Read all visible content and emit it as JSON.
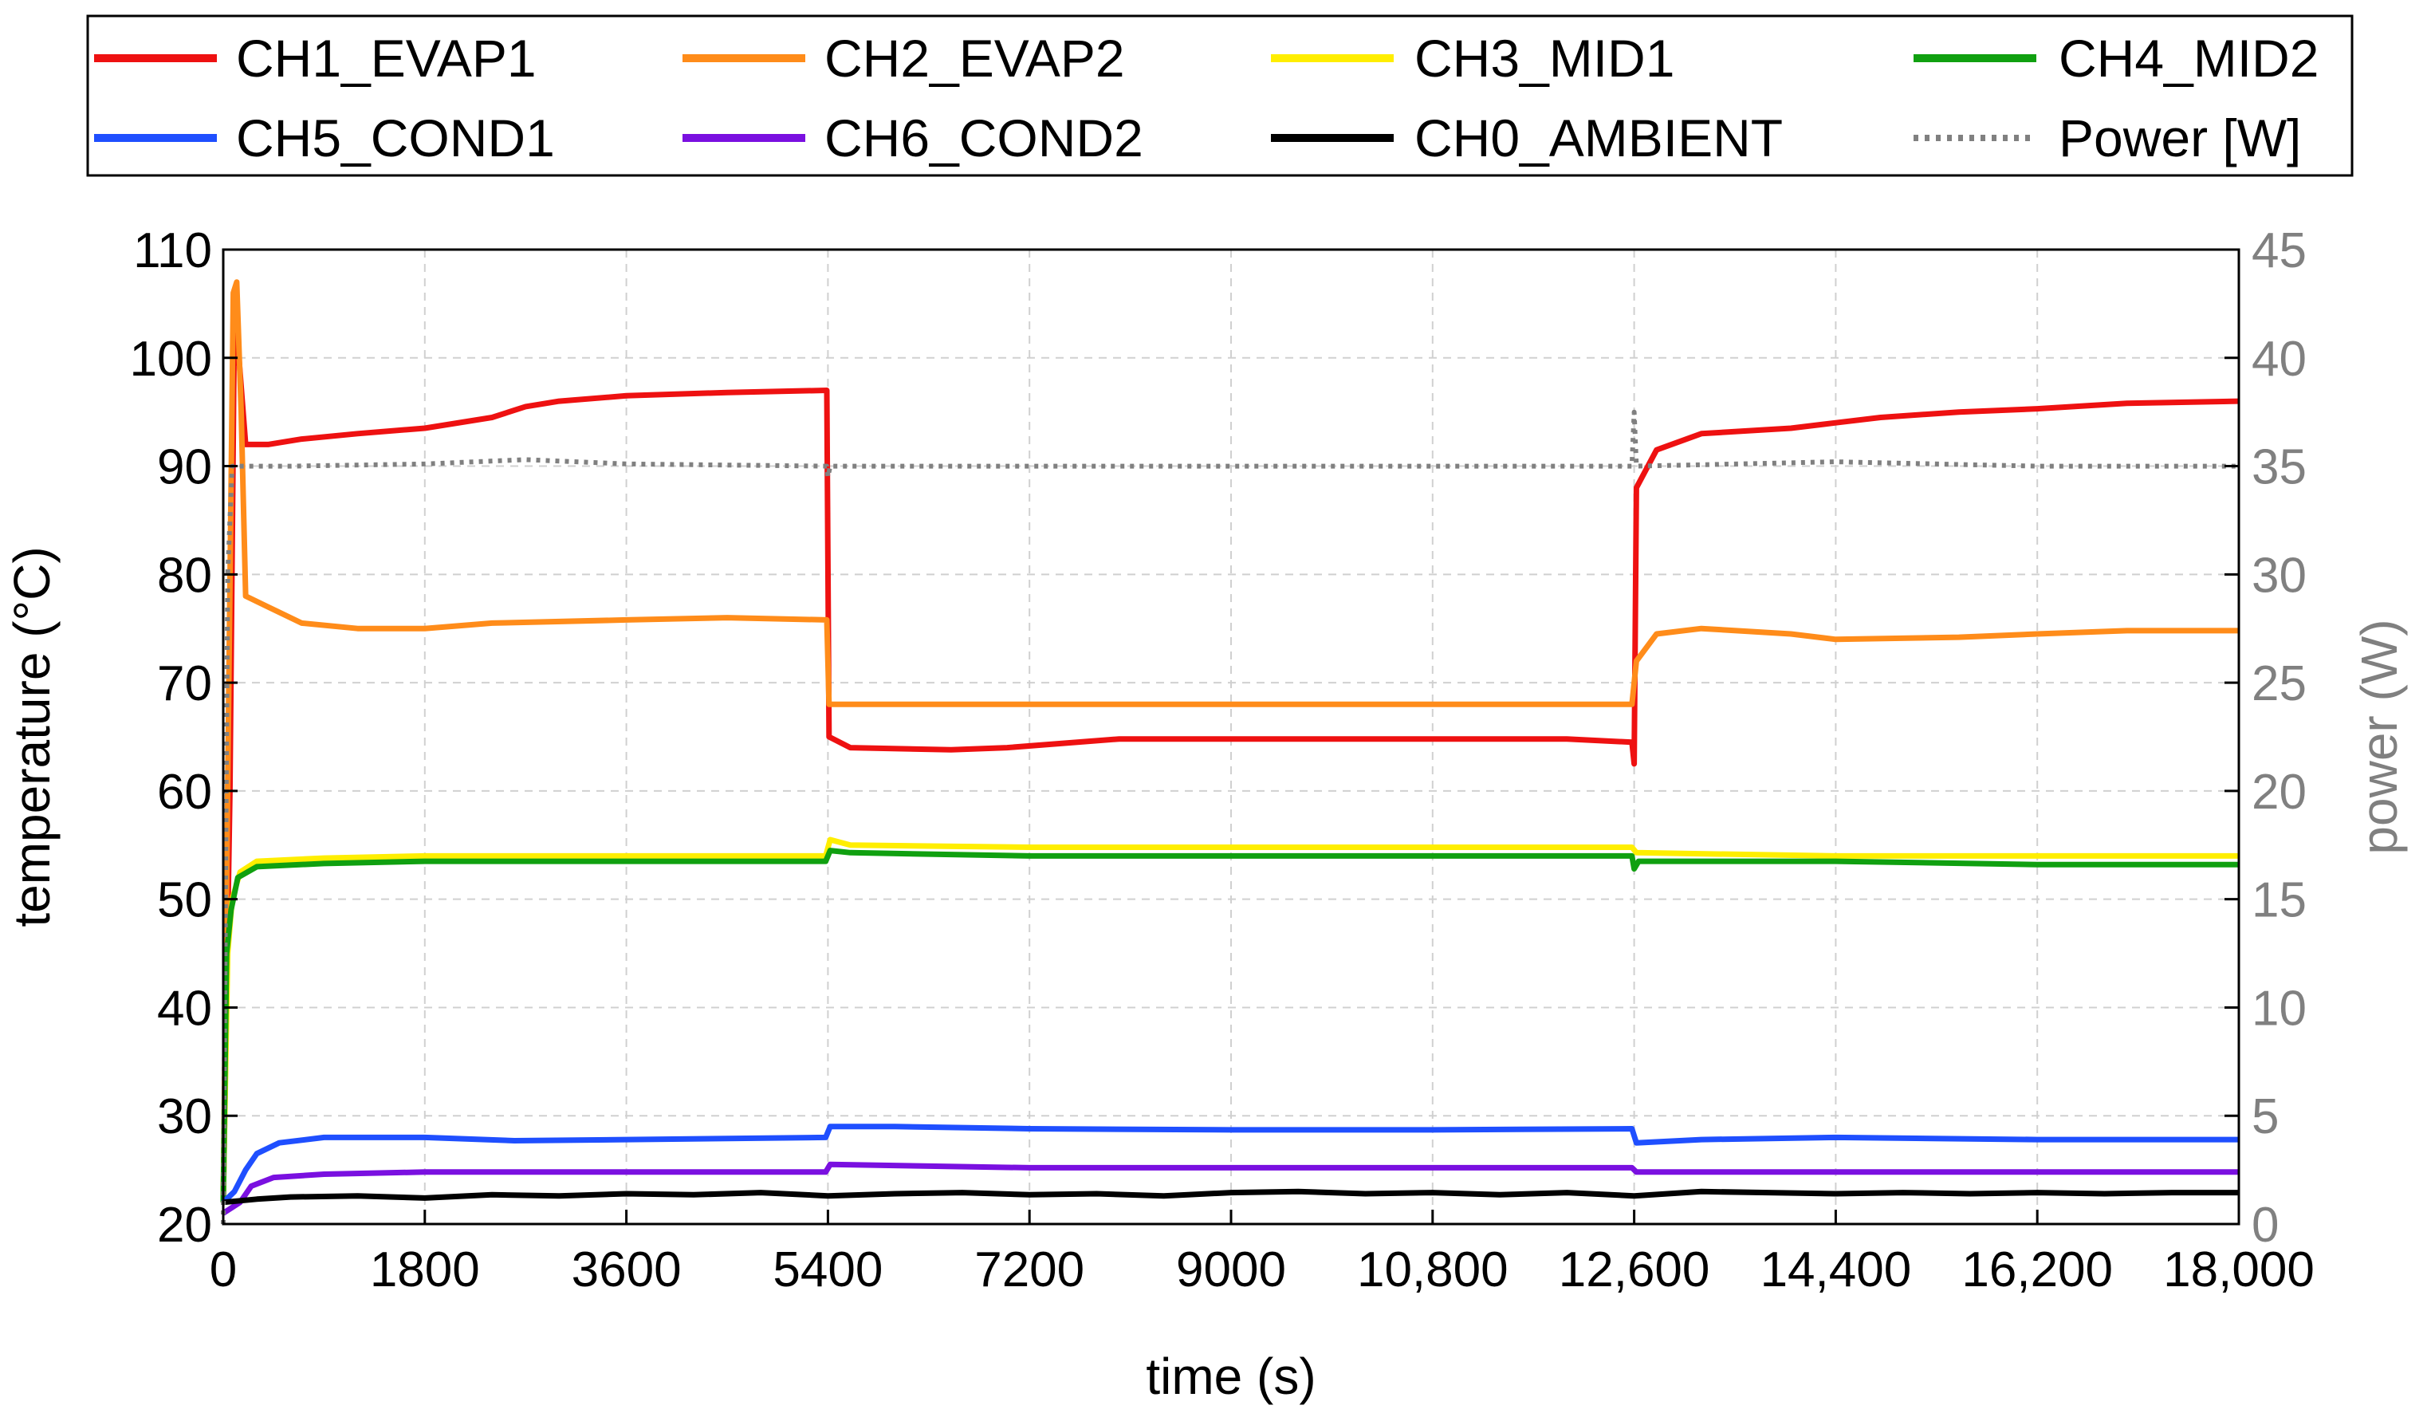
{
  "chart_data": {
    "type": "line",
    "xlabel": "time (s)",
    "ylabel": "temperature (°C)",
    "y2label": "power (W)",
    "xlim": [
      0,
      18000
    ],
    "ylim": [
      20,
      110
    ],
    "y2lim": [
      0,
      45
    ],
    "grid": true,
    "legend_position": "top",
    "x_ticks": [
      {
        "value": 0,
        "label": "0"
      },
      {
        "value": 1800,
        "label": "1800"
      },
      {
        "value": 3600,
        "label": "3600"
      },
      {
        "value": 5400,
        "label": "5400"
      },
      {
        "value": 7200,
        "label": "7200"
      },
      {
        "value": 9000,
        "label": "9000"
      },
      {
        "value": 10800,
        "label": "10,800"
      },
      {
        "value": 12600,
        "label": "12,600"
      },
      {
        "value": 14400,
        "label": "14,400"
      },
      {
        "value": 16200,
        "label": "16,200"
      },
      {
        "value": 18000,
        "label": "18,000"
      }
    ],
    "y_ticks": [
      {
        "value": 20,
        "label": "20"
      },
      {
        "value": 30,
        "label": "30"
      },
      {
        "value": 40,
        "label": "40"
      },
      {
        "value": 50,
        "label": "50"
      },
      {
        "value": 60,
        "label": "60"
      },
      {
        "value": 70,
        "label": "70"
      },
      {
        "value": 80,
        "label": "80"
      },
      {
        "value": 90,
        "label": "90"
      },
      {
        "value": 100,
        "label": "100"
      },
      {
        "value": 110,
        "label": "110"
      }
    ],
    "y2_ticks": [
      {
        "value": 0,
        "label": "0"
      },
      {
        "value": 5,
        "label": "5"
      },
      {
        "value": 10,
        "label": "10"
      },
      {
        "value": 15,
        "label": "15"
      },
      {
        "value": 20,
        "label": "20"
      },
      {
        "value": 25,
        "label": "25"
      },
      {
        "value": 30,
        "label": "30"
      },
      {
        "value": 35,
        "label": "35"
      },
      {
        "value": 40,
        "label": "40"
      },
      {
        "value": 45,
        "label": "45"
      }
    ],
    "series": [
      {
        "name": "CH1_EVAP1",
        "color": "#ee1111",
        "axis": "left",
        "style": "solid",
        "points": [
          [
            0,
            22
          ],
          [
            60,
            60
          ],
          [
            100,
            104
          ],
          [
            140,
            100
          ],
          [
            200,
            92
          ],
          [
            400,
            92
          ],
          [
            700,
            92.5
          ],
          [
            1200,
            93
          ],
          [
            1800,
            93.5
          ],
          [
            2400,
            94.5
          ],
          [
            2700,
            95.5
          ],
          [
            3000,
            96
          ],
          [
            3600,
            96.5
          ],
          [
            4500,
            96.8
          ],
          [
            5390,
            97
          ],
          [
            5410,
            65
          ],
          [
            5600,
            64
          ],
          [
            6500,
            63.8
          ],
          [
            7000,
            64
          ],
          [
            8000,
            64.8
          ],
          [
            9000,
            64.8
          ],
          [
            10000,
            64.8
          ],
          [
            11000,
            64.8
          ],
          [
            12000,
            64.8
          ],
          [
            12580,
            64.5
          ],
          [
            12600,
            62.5
          ],
          [
            12620,
            88
          ],
          [
            12800,
            91.5
          ],
          [
            13200,
            93
          ],
          [
            14000,
            93.5
          ],
          [
            14400,
            94
          ],
          [
            14800,
            94.5
          ],
          [
            15500,
            95
          ],
          [
            16200,
            95.3
          ],
          [
            17000,
            95.8
          ],
          [
            18000,
            96
          ]
        ]
      },
      {
        "name": "CH2_EVAP2",
        "color": "#ff8c1a",
        "axis": "left",
        "style": "solid",
        "points": [
          [
            0,
            22
          ],
          [
            50,
            70
          ],
          [
            90,
            106
          ],
          [
            120,
            107
          ],
          [
            160,
            95
          ],
          [
            200,
            78
          ],
          [
            400,
            77
          ],
          [
            700,
            75.5
          ],
          [
            1200,
            75
          ],
          [
            1800,
            75
          ],
          [
            2400,
            75.5
          ],
          [
            3600,
            75.8
          ],
          [
            4500,
            76
          ],
          [
            5390,
            75.8
          ],
          [
            5410,
            68
          ],
          [
            6000,
            68
          ],
          [
            7200,
            68
          ],
          [
            9000,
            68
          ],
          [
            10800,
            68
          ],
          [
            12580,
            68
          ],
          [
            12620,
            72
          ],
          [
            12800,
            74.5
          ],
          [
            13200,
            75
          ],
          [
            14000,
            74.5
          ],
          [
            14400,
            74
          ],
          [
            15500,
            74.2
          ],
          [
            16200,
            74.5
          ],
          [
            17000,
            74.8
          ],
          [
            18000,
            74.8
          ]
        ]
      },
      {
        "name": "CH3_MID1",
        "color": "#ffee00",
        "axis": "left",
        "style": "solid",
        "points": [
          [
            0,
            22
          ],
          [
            40,
            45
          ],
          [
            80,
            50
          ],
          [
            150,
            52.5
          ],
          [
            300,
            53.5
          ],
          [
            900,
            53.8
          ],
          [
            1800,
            54
          ],
          [
            3600,
            54
          ],
          [
            5380,
            54
          ],
          [
            5420,
            55.5
          ],
          [
            5600,
            55
          ],
          [
            7200,
            54.8
          ],
          [
            9000,
            54.8
          ],
          [
            10800,
            54.8
          ],
          [
            12580,
            54.8
          ],
          [
            12620,
            54.3
          ],
          [
            14400,
            54
          ],
          [
            16200,
            54
          ],
          [
            18000,
            54
          ]
        ]
      },
      {
        "name": "CH4_MID2",
        "color": "#10a010",
        "axis": "left",
        "style": "solid",
        "points": [
          [
            0,
            22
          ],
          [
            30,
            45
          ],
          [
            70,
            49
          ],
          [
            130,
            52
          ],
          [
            300,
            53
          ],
          [
            900,
            53.3
          ],
          [
            1800,
            53.5
          ],
          [
            3600,
            53.5
          ],
          [
            5380,
            53.5
          ],
          [
            5420,
            54.5
          ],
          [
            5600,
            54.3
          ],
          [
            7200,
            54
          ],
          [
            9000,
            54
          ],
          [
            10800,
            54
          ],
          [
            12580,
            54
          ],
          [
            12600,
            52.8
          ],
          [
            12640,
            53.5
          ],
          [
            14400,
            53.5
          ],
          [
            16200,
            53.2
          ],
          [
            18000,
            53.2
          ]
        ]
      },
      {
        "name": "CH5_COND1",
        "color": "#1f4fff",
        "axis": "left",
        "style": "solid",
        "points": [
          [
            0,
            22
          ],
          [
            100,
            23
          ],
          [
            200,
            25
          ],
          [
            300,
            26.5
          ],
          [
            500,
            27.5
          ],
          [
            900,
            28
          ],
          [
            1800,
            28
          ],
          [
            2600,
            27.7
          ],
          [
            3600,
            27.8
          ],
          [
            5380,
            28
          ],
          [
            5420,
            29
          ],
          [
            6000,
            29
          ],
          [
            7200,
            28.8
          ],
          [
            9000,
            28.7
          ],
          [
            10800,
            28.7
          ],
          [
            12580,
            28.8
          ],
          [
            12620,
            27.5
          ],
          [
            13200,
            27.8
          ],
          [
            14400,
            28
          ],
          [
            16200,
            27.8
          ],
          [
            18000,
            27.8
          ]
        ]
      },
      {
        "name": "CH6_COND2",
        "color": "#7a10e0",
        "axis": "left",
        "style": "solid",
        "points": [
          [
            0,
            21
          ],
          [
            150,
            22
          ],
          [
            250,
            23.5
          ],
          [
            450,
            24.3
          ],
          [
            900,
            24.6
          ],
          [
            1800,
            24.8
          ],
          [
            3600,
            24.8
          ],
          [
            5380,
            24.8
          ],
          [
            5420,
            25.5
          ],
          [
            7200,
            25.2
          ],
          [
            9000,
            25.2
          ],
          [
            10800,
            25.2
          ],
          [
            12580,
            25.2
          ],
          [
            12620,
            24.8
          ],
          [
            14400,
            24.8
          ],
          [
            16200,
            24.8
          ],
          [
            18000,
            24.8
          ]
        ]
      },
      {
        "name": "CH0_AMBIENT",
        "color": "#000000",
        "axis": "left",
        "style": "solid",
        "points": [
          [
            0,
            22
          ],
          [
            300,
            22.3
          ],
          [
            600,
            22.5
          ],
          [
            1200,
            22.6
          ],
          [
            1800,
            22.4
          ],
          [
            2400,
            22.7
          ],
          [
            3000,
            22.6
          ],
          [
            3600,
            22.8
          ],
          [
            4200,
            22.7
          ],
          [
            4800,
            22.9
          ],
          [
            5400,
            22.6
          ],
          [
            6000,
            22.8
          ],
          [
            6600,
            22.9
          ],
          [
            7200,
            22.7
          ],
          [
            7800,
            22.8
          ],
          [
            8400,
            22.6
          ],
          [
            9000,
            22.9
          ],
          [
            9600,
            23
          ],
          [
            10200,
            22.8
          ],
          [
            10800,
            22.9
          ],
          [
            11400,
            22.7
          ],
          [
            12000,
            22.9
          ],
          [
            12600,
            22.6
          ],
          [
            13200,
            23
          ],
          [
            13800,
            22.9
          ],
          [
            14400,
            22.8
          ],
          [
            15000,
            22.9
          ],
          [
            15600,
            22.8
          ],
          [
            16200,
            22.9
          ],
          [
            16800,
            22.8
          ],
          [
            17400,
            22.9
          ],
          [
            18000,
            22.9
          ]
        ]
      },
      {
        "name": "Power [W]",
        "color": "#808080",
        "axis": "right",
        "style": "dotted",
        "points": [
          [
            0,
            0
          ],
          [
            40,
            30
          ],
          [
            80,
            35
          ],
          [
            600,
            35
          ],
          [
            1800,
            35.1
          ],
          [
            2700,
            35.3
          ],
          [
            3600,
            35.1
          ],
          [
            5390,
            35
          ],
          [
            5400,
            34.5
          ],
          [
            5420,
            35
          ],
          [
            7200,
            35
          ],
          [
            9000,
            35
          ],
          [
            10800,
            35
          ],
          [
            12580,
            35
          ],
          [
            12600,
            37.5
          ],
          [
            12620,
            35
          ],
          [
            14400,
            35.2
          ],
          [
            16200,
            35
          ],
          [
            18000,
            35
          ]
        ]
      }
    ]
  }
}
